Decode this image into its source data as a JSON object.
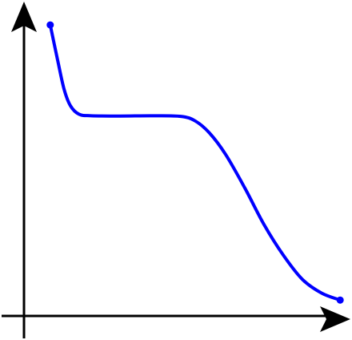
{
  "chart_data": {
    "type": "line",
    "title": "",
    "xlabel": "",
    "ylabel": "",
    "grid": false,
    "legend": "none",
    "xlim": [
      0,
      10
    ],
    "ylim": [
      0,
      10
    ],
    "series": [
      {
        "color": "#0000ff",
        "points": [
          [
            0.82,
            9.55
          ],
          [
            1.05,
            8.4
          ],
          [
            1.25,
            7.45
          ],
          [
            1.45,
            6.9
          ],
          [
            1.72,
            6.62
          ],
          [
            2.1,
            6.57
          ],
          [
            3.0,
            6.56
          ],
          [
            4.0,
            6.57
          ],
          [
            4.9,
            6.55
          ],
          [
            5.35,
            6.4
          ],
          [
            5.8,
            6.0
          ],
          [
            6.3,
            5.3
          ],
          [
            6.9,
            4.2
          ],
          [
            7.5,
            3.0
          ],
          [
            8.1,
            2.0
          ],
          [
            8.7,
            1.2
          ],
          [
            9.3,
            0.75
          ],
          [
            9.88,
            0.52
          ]
        ],
        "endpoint_markers": true
      }
    ],
    "axes": {
      "color": "#000000",
      "arrowheads": true
    }
  }
}
